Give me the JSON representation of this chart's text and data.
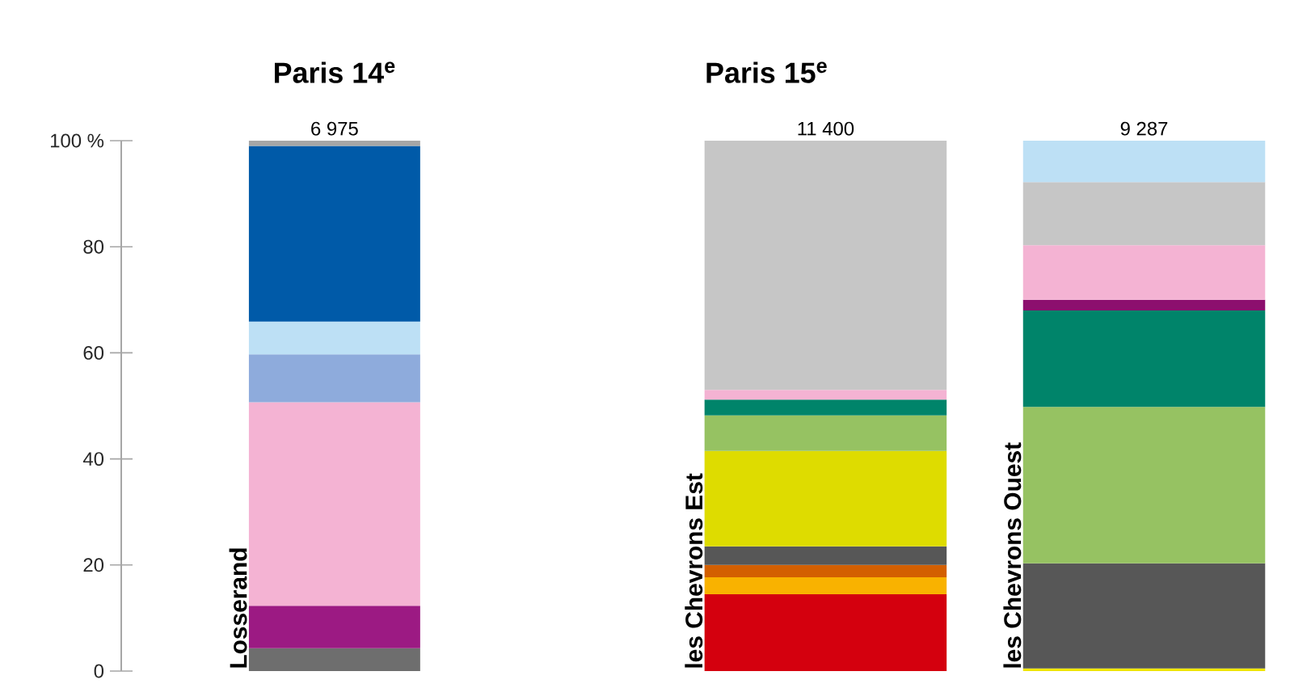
{
  "chart_data": [
    {
      "type": "bar",
      "title": "Paris 14$^{e}$",
      "stacked": true,
      "categories": [
        null
      ],
      "ylim": [
        0,
        100
      ],
      "yticks": [
        0,
        20,
        40,
        60,
        80,
        {
          "value": 100,
          "label": "100 %"
        }
      ],
      "annotations": [
        "6 975",
        "Losserand"
      ],
      "series": [
        {
          "color": "#6e6e6e",
          "values": [
            4.3
          ]
        },
        {
          "color": "#9c1a83",
          "values": [
            8
          ]
        },
        {
          "color": "#f4b3d3",
          "values": [
            38.4
          ]
        },
        {
          "color": "#8eabdc",
          "values": [
            9
          ]
        },
        {
          "color": "#bde0f5",
          "values": [
            6.2
          ]
        },
        {
          "color": "#005aa8",
          "values": [
            33.1
          ]
        },
        {
          "color": "#a6a6a6",
          "values": [
            1
          ]
        }
      ]
    },
    {
      "type": "bar",
      "title": "Paris 15$^{e}$",
      "stacked": true,
      "categories": [
        "les Chevrons Est",
        "les Chevrons Ouest"
      ],
      "ylim": [
        0,
        100
      ],
      "tick_labels": "x",
      "annotations": [
        "11 400",
        "9 287"
      ],
      "series": [
        {
          "color": "#f0e600",
          "values": [
            null,
            0.5
          ]
        },
        {
          "color": "#d4000e",
          "values": [
            14.5,
            null
          ]
        },
        {
          "color": "#f9b200",
          "values": [
            3.2,
            null
          ]
        },
        {
          "color": "#d35f00",
          "values": [
            2.3,
            null
          ]
        },
        {
          "color": "#575757",
          "values": [
            3.5,
            19.8
          ]
        },
        {
          "color": "#dedc00",
          "values": [
            18,
            null
          ]
        },
        {
          "color": "#96c262",
          "values": [
            6.7,
            29.5
          ]
        },
        {
          "color": "#00846a",
          "values": [
            3,
            18.2
          ]
        },
        {
          "color": "#8c0f6e",
          "values": [
            null,
            2
          ]
        },
        {
          "color": "#f4b3d3",
          "values": [
            1.8,
            10.3
          ]
        },
        {
          "color": "#c6c6c6",
          "values": [
            47,
            11.9
          ]
        },
        {
          "color": "#bde0f5",
          "values": [
            null,
            7.8
          ]
        }
      ]
    }
  ]
}
